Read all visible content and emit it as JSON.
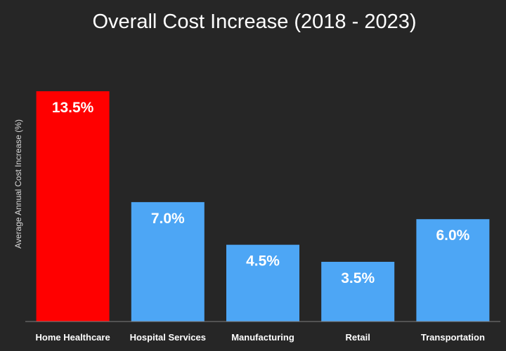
{
  "chart_data": {
    "type": "bar",
    "title": "Overall Cost Increase (2018 - 2023)",
    "ylabel": "Average Annual Cost Increase (%)",
    "xlabel": "",
    "categories": [
      "Home Healthcare",
      "Hospital Services",
      "Manufacturing",
      "Retail",
      "Transportation"
    ],
    "values": [
      13.5,
      7.0,
      4.5,
      3.5,
      6.0
    ],
    "value_labels": [
      "13.5%",
      "7.0%",
      "4.5%",
      "3.5%",
      "6.0%"
    ],
    "ylim": [
      0,
      16
    ],
    "grid": false,
    "legend": "none",
    "colors": {
      "highlight": "#ff0000",
      "bar": "#4da6f5",
      "background": "#262626",
      "axis": "#7f7f7f"
    },
    "highlight_index": 0
  }
}
